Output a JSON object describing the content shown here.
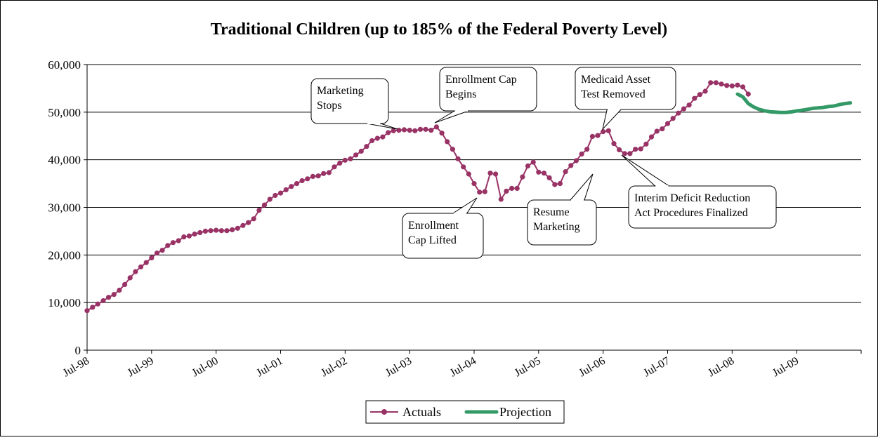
{
  "chart_data": {
    "type": "line",
    "title": "Traditional Children (up to 185% of the Federal Poverty Level)",
    "xlabel": "",
    "ylabel": "",
    "ylim": [
      0,
      60000
    ],
    "y_ticks": [
      "0",
      "10,000",
      "20,000",
      "30,000",
      "40,000",
      "50,000",
      "60,000"
    ],
    "x_ticks": [
      "Jul-98",
      "Jul-99",
      "Jul-00",
      "Jul-01",
      "Jul-02",
      "Jul-03",
      "Jul-04",
      "Jul-05",
      "Jul-06",
      "Jul-07",
      "Jul-08",
      "Jul-09"
    ],
    "x_start": "Jul-98",
    "x_end": "Jul-10",
    "grid": true,
    "legend_position": "bottom",
    "series": [
      {
        "name": "Actuals",
        "color": "#993366",
        "marker": "circle",
        "start": "Jul-98",
        "values": [
          8300,
          9000,
          9700,
          10400,
          11100,
          11700,
          12600,
          13800,
          15200,
          16500,
          17500,
          18400,
          19400,
          20400,
          21000,
          22000,
          22600,
          23000,
          23800,
          24000,
          24400,
          24700,
          25000,
          25100,
          25200,
          25100,
          25100,
          25300,
          25600,
          26200,
          26800,
          27600,
          29400,
          30500,
          31700,
          32500,
          33000,
          33700,
          34400,
          35000,
          35600,
          36000,
          36500,
          36600,
          37100,
          37300,
          38500,
          39300,
          39900,
          40200,
          41000,
          41800,
          42800,
          44000,
          44500,
          44800,
          45700,
          46100,
          46200,
          46300,
          46200,
          46100,
          46400,
          46400,
          46200,
          46900,
          45600,
          43800,
          42200,
          40200,
          38500,
          37000,
          35000,
          33200,
          33300,
          37200,
          37000,
          31700,
          33400,
          34000,
          34000,
          36400,
          38700,
          39500,
          37400,
          37200,
          36200,
          34800,
          35000,
          37500,
          38800,
          39800,
          41200,
          42200,
          44900,
          45100,
          45900,
          46100,
          43400,
          42100,
          41300,
          41300,
          42200,
          42300,
          43300,
          44800,
          46000,
          46500,
          47600,
          48700,
          49800,
          50700,
          51500,
          52900,
          53700,
          54400,
          56200,
          56200,
          55900,
          55600,
          55500,
          55700,
          55300,
          53800
        ]
      },
      {
        "name": "Projection",
        "color": "#339966",
        "marker": "none",
        "start": "Aug-08",
        "values": [
          53800,
          53200,
          51800,
          51100,
          50600,
          50300,
          50100,
          50000,
          49950,
          49950,
          50050,
          50250,
          50400,
          50600,
          50800,
          50900,
          51000,
          51200,
          51300,
          51600,
          51800,
          51950
        ]
      }
    ],
    "annotations": [
      {
        "text": "Marketing\nStops"
      },
      {
        "text": "Enrollment Cap\nBegins"
      },
      {
        "text": "Medicaid Asset\nTest Removed"
      },
      {
        "text": "Enrollment\nCap Lifted"
      },
      {
        "text": "Resume\nMarketing"
      },
      {
        "text": "Interim Deficit Reduction\nAct Procedures Finalized"
      }
    ]
  }
}
